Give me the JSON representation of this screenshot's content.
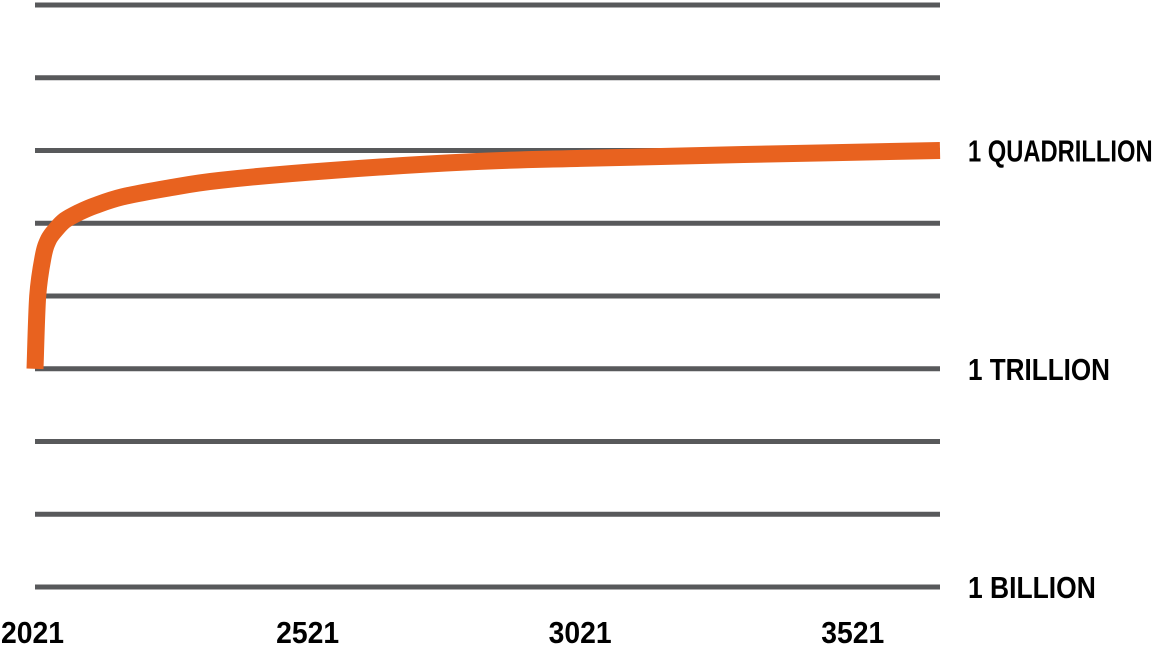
{
  "chart_data": {
    "type": "line",
    "title": "",
    "xlabel": "",
    "ylabel": "",
    "scale_y": "log10",
    "xlim": [
      2021,
      3681
    ],
    "ylim": [
      1000000000,
      100000000000000000
    ],
    "grid_y": true,
    "x_tick_values": [
      2021,
      2521,
      3021,
      3521
    ],
    "x_tick_labels": [
      "2021",
      "2521",
      "3021",
      "3521"
    ],
    "y_tick_values": [
      1000000000,
      1000000000000,
      1000000000000000
    ],
    "y_tick_labels": [
      "1 BILLION",
      "1 TRILLION",
      "1 QUADRILLION"
    ],
    "y_label_position": "right",
    "series": [
      {
        "color": "#e8621f",
        "x": [
          2021,
          2026,
          2036,
          2046,
          2061,
          2076,
          2101,
          2131,
          2181,
          2261,
          2361,
          2561,
          2821,
          3021,
          3321,
          3681
        ],
        "y": [
          1000000000000,
          10000000000000,
          35000000000000,
          60000000000000,
          85000000000000,
          110000000000000,
          140000000000000,
          175000000000000,
          230000000000000,
          300000000000000,
          390000000000000,
          530000000000000,
          700000000000000,
          780000000000000,
          880000000000000,
          1000000000000000
        ]
      }
    ],
    "colors": {
      "grid": "#58595b",
      "line": "#e8621f",
      "text": "#000000"
    }
  }
}
